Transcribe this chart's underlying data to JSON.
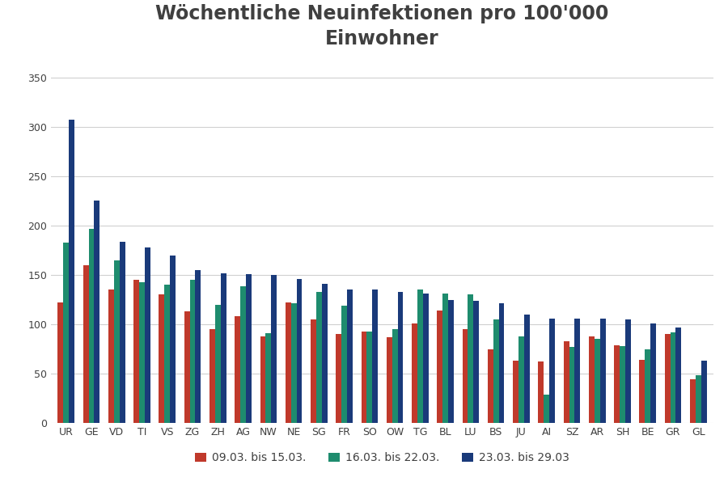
{
  "title": "Wöchentliche Neuinfektionen pro 100'000\nEinwohner",
  "cantons": [
    "UR",
    "GE",
    "VD",
    "TI",
    "VS",
    "ZG",
    "ZH",
    "AG",
    "NW",
    "NE",
    "SG",
    "FR",
    "SO",
    "OW",
    "TG",
    "BL",
    "LU",
    "BS",
    "JU",
    "AI",
    "SZ",
    "AR",
    "SH",
    "BE",
    "GR",
    "GL"
  ],
  "series1_label": "09.03. bis 15.03.",
  "series2_label": "16.03. bis 22.03.",
  "series3_label": "23.03. bis 29.03",
  "series1_color": "#c0392b",
  "series2_color": "#1e8c6e",
  "series3_color": "#1a3a7a",
  "series1": [
    122,
    160,
    135,
    145,
    130,
    113,
    95,
    108,
    88,
    122,
    105,
    90,
    93,
    87,
    101,
    114,
    95,
    75,
    63,
    62,
    83,
    88,
    79,
    64,
    90,
    44
  ],
  "series2": [
    183,
    197,
    165,
    143,
    140,
    145,
    120,
    139,
    91,
    121,
    133,
    119,
    93,
    95,
    135,
    131,
    130,
    105,
    88,
    29,
    77,
    85,
    78,
    75,
    92,
    48
  ],
  "series3": [
    308,
    226,
    184,
    178,
    170,
    155,
    152,
    151,
    150,
    146,
    141,
    135,
    135,
    133,
    131,
    125,
    124,
    121,
    110,
    106,
    106,
    106,
    105,
    101,
    97,
    63
  ],
  "ylim": [
    0,
    370
  ],
  "yticks": [
    0,
    50,
    100,
    150,
    200,
    250,
    300,
    350
  ],
  "background_color": "#ffffff",
  "grid_color": "#d0d0d0",
  "title_color": "#404040",
  "title_fontsize": 17,
  "tick_fontsize": 9,
  "legend_fontsize": 10
}
